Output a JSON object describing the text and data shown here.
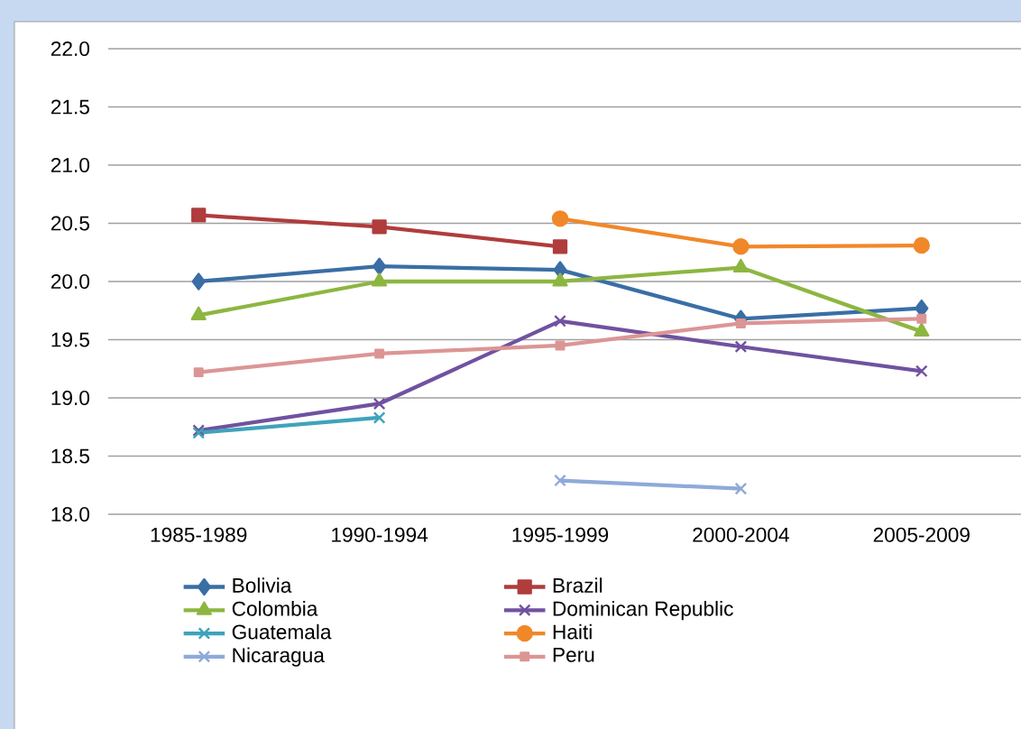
{
  "chart_data": {
    "type": "line",
    "categories": [
      "1985-1989",
      "1990-1994",
      "1995-1999",
      "2000-2004",
      "2005-2009"
    ],
    "series": [
      {
        "name": "Bolivia",
        "color": "#3a6ea5",
        "marker": "diamond",
        "values": [
          20.0,
          20.13,
          20.1,
          19.68,
          19.77
        ]
      },
      {
        "name": "Brazil",
        "color": "#b03c3c",
        "marker": "square",
        "values": [
          20.57,
          20.47,
          20.3,
          null,
          null
        ]
      },
      {
        "name": "Colombia",
        "color": "#8db640",
        "marker": "triangle",
        "values": [
          19.71,
          20.0,
          20.0,
          20.12,
          19.57
        ]
      },
      {
        "name": "Dominican Republic",
        "color": "#7052a0",
        "marker": "cross",
        "values": [
          18.72,
          18.95,
          19.66,
          19.44,
          19.23
        ]
      },
      {
        "name": "Guatemala",
        "color": "#3fa3bb",
        "marker": "cross",
        "values": [
          18.7,
          18.83,
          null,
          null,
          null
        ]
      },
      {
        "name": "Haiti",
        "color": "#f0882a",
        "marker": "circle",
        "values": [
          null,
          null,
          20.54,
          20.3,
          20.31
        ]
      },
      {
        "name": "Nicaragua",
        "color": "#8eaad8",
        "marker": "cross",
        "values": [
          null,
          null,
          18.29,
          18.22,
          null
        ]
      },
      {
        "name": "Peru",
        "color": "#dc9595",
        "marker": "square",
        "values": [
          19.22,
          19.38,
          19.45,
          19.64,
          19.68
        ]
      }
    ],
    "ylim": [
      18.0,
      22.0
    ],
    "yticks": [
      {
        "value": 18.0,
        "label": "18.0"
      },
      {
        "value": 18.5,
        "label": "18.5"
      },
      {
        "value": 19.0,
        "label": "19.0"
      },
      {
        "value": 19.5,
        "label": "19.5"
      },
      {
        "value": 20.0,
        "label": "20.0"
      },
      {
        "value": 20.5,
        "label": "20.5"
      },
      {
        "value": 21.0,
        "label": "21.0"
      },
      {
        "value": 21.5,
        "label": "21.5"
      },
      {
        "value": 22.0,
        "label": "22.0"
      }
    ],
    "grid": "y",
    "legend": "bottom",
    "line_style": "solid"
  }
}
